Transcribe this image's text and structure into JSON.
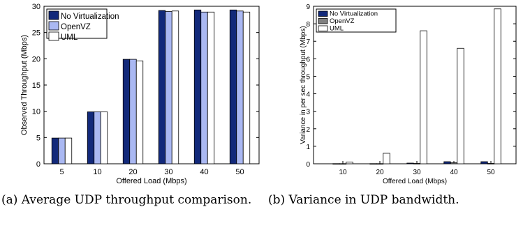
{
  "chart_data": [
    {
      "type": "bar",
      "xlabel": "Offered Load (Mbps)",
      "ylabel": "Observed Throughput (Mbps)",
      "categories": [
        "5",
        "10",
        "20",
        "30",
        "40",
        "50"
      ],
      "ylim": [
        0,
        30
      ],
      "yticks": [
        "0",
        "5",
        "10",
        "15",
        "20",
        "25",
        "30"
      ],
      "legend_position": "top-left",
      "series": [
        {
          "name": "No Virtualization",
          "color": "#12297a",
          "values": [
            4.9,
            9.9,
            19.9,
            29.2,
            29.3,
            29.3
          ]
        },
        {
          "name": "OpenVZ",
          "color": "#aab8f2",
          "values": [
            4.9,
            9.9,
            19.9,
            29.0,
            28.9,
            29.1
          ]
        },
        {
          "name": "UML",
          "color": "#ffffff",
          "values": [
            4.9,
            9.9,
            19.6,
            29.1,
            28.9,
            28.9
          ]
        }
      ],
      "caption": "(a) Average UDP throughput comparison."
    },
    {
      "type": "bar",
      "xlabel": "Offered Load (Mbps)",
      "ylabel": "Variance in per sec throughput (Mbps)",
      "categories": [
        "10",
        "20",
        "30",
        "40",
        "50"
      ],
      "ylim": [
        0,
        9
      ],
      "yticks": [
        "0",
        "1",
        "2",
        "3",
        "4",
        "5",
        "6",
        "7",
        "8",
        "9"
      ],
      "legend_position": "top-left",
      "series": [
        {
          "name": "No Virtualization",
          "color": "#12297a",
          "values": [
            0.01,
            0.01,
            0.04,
            0.12,
            0.12
          ]
        },
        {
          "name": "OpenVZ",
          "color": "#808080",
          "values": [
            0.01,
            0.01,
            0.02,
            0.06,
            0.02
          ]
        },
        {
          "name": "UML",
          "color": "#ffffff",
          "values": [
            0.1,
            0.6,
            7.6,
            6.6,
            8.85
          ]
        }
      ],
      "caption": "(b) Variance in UDP bandwidth."
    }
  ]
}
